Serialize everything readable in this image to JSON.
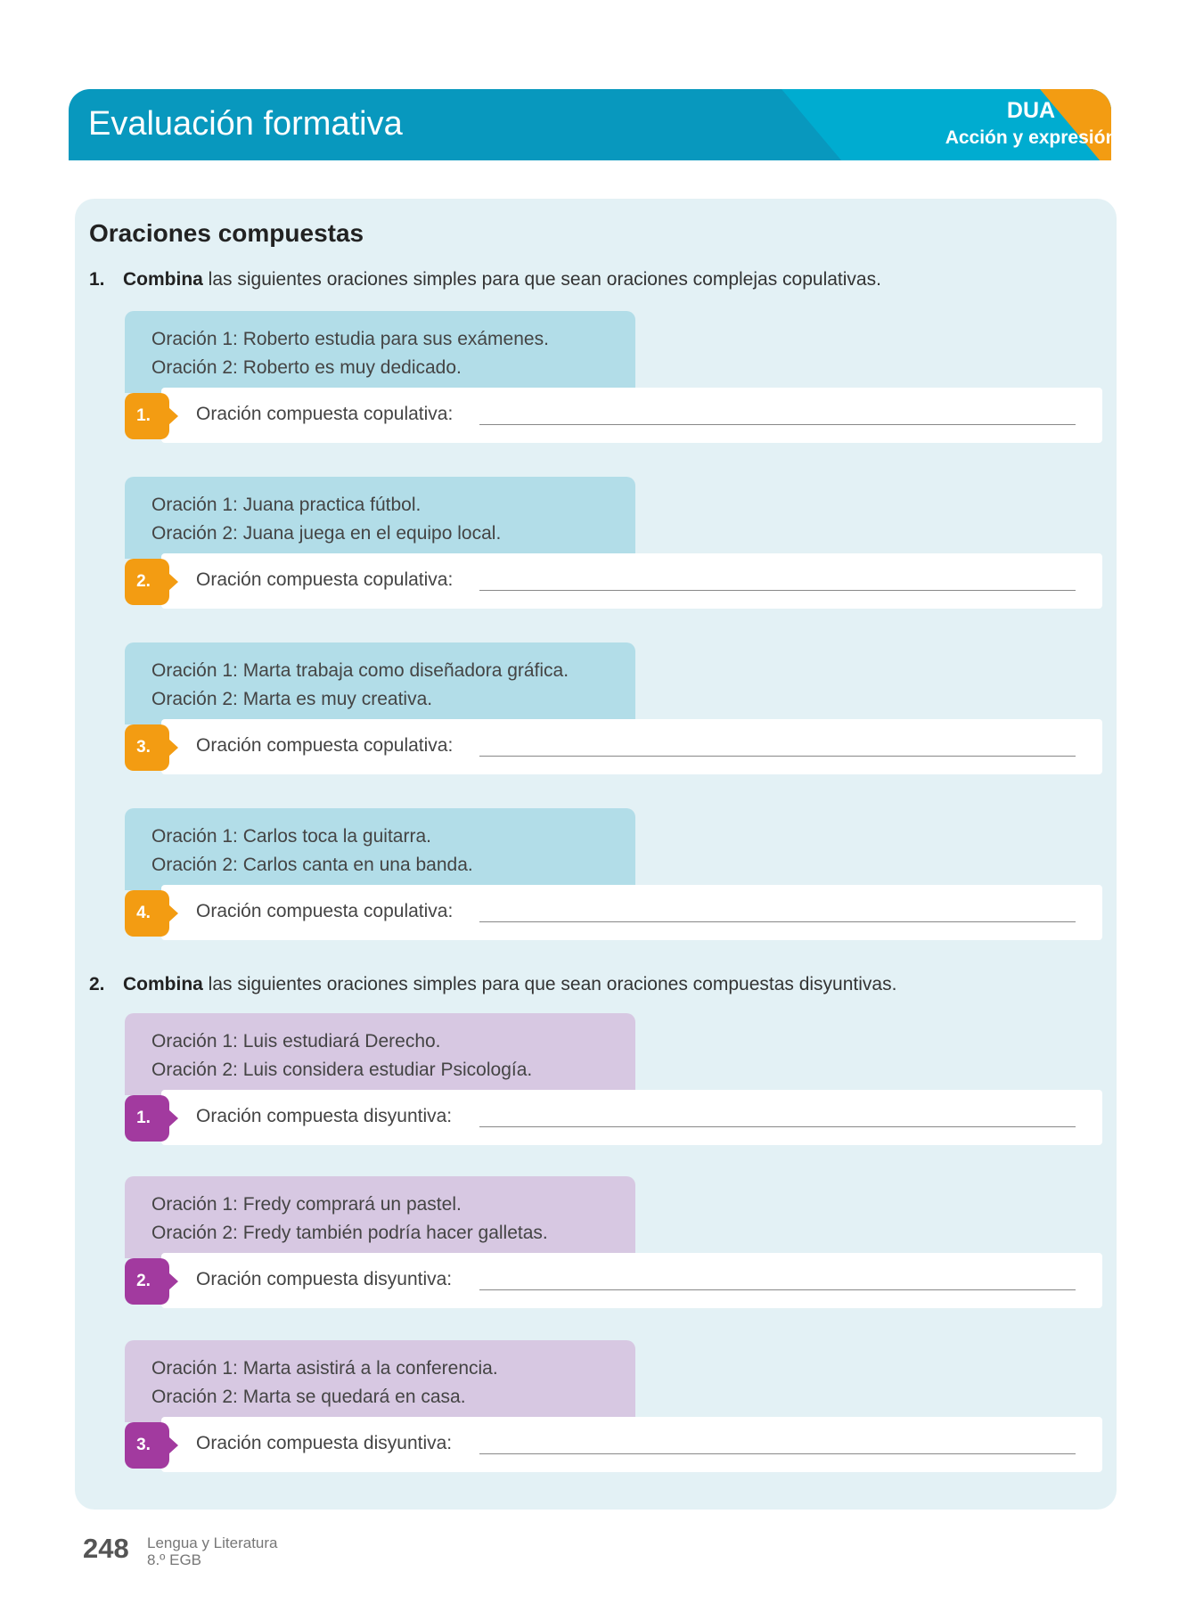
{
  "header": {
    "title": "Evaluación formativa",
    "dua": "DUA",
    "dua_sub": "Acción y expresión"
  },
  "section_title": "Oraciones compuestas",
  "q1": {
    "num": "1.",
    "verb": "Combina",
    "text": " las siguientes oraciones simples para que sean oraciones complejas copulativas.",
    "answer_label": "Oración compuesta copulativa:",
    "items": [
      {
        "badge": "1.",
        "o1": "Oración 1: Roberto estudia para sus exámenes.",
        "o2": "Oración 2: Roberto es muy dedicado."
      },
      {
        "badge": "2.",
        "o1": "Oración 1: Juana practica fútbol.",
        "o2": "Oración 2: Juana juega en el equipo local."
      },
      {
        "badge": "3.",
        "o1": "Oración 1: Marta trabaja como diseñadora gráfica.",
        "o2": "Oración 2: Marta es muy creativa."
      },
      {
        "badge": "4.",
        "o1": "Oración 1: Carlos toca la guitarra.",
        "o2": "Oración 2: Carlos canta en una banda."
      }
    ]
  },
  "q2": {
    "num": "2.",
    "verb": "Combina",
    "text": " las siguientes oraciones simples para que sean oraciones compuestas disyuntivas.",
    "answer_label": "Oración compuesta disyuntiva:",
    "items": [
      {
        "badge": "1.",
        "o1": "Oración 1: Luis estudiará Derecho.",
        "o2": "Oración 2: Luis considera estudiar Psicología."
      },
      {
        "badge": "2.",
        "o1": "Oración 1: Fredy comprará un pastel.",
        "o2": "Oración 2: Fredy también podría hacer galletas."
      },
      {
        "badge": "3.",
        "o1": "Oración 1: Marta asistirá a la conferencia.",
        "o2": "Oración 2: Marta se quedará en casa."
      }
    ]
  },
  "footer": {
    "page": "248",
    "subject": "Lengua y Literatura",
    "grade": "8.º EGB"
  },
  "colors": {
    "header": "#0898be",
    "dua": "#00acd0",
    "accent_orange": "#f39c12",
    "accent_purple": "#a23a9f"
  }
}
